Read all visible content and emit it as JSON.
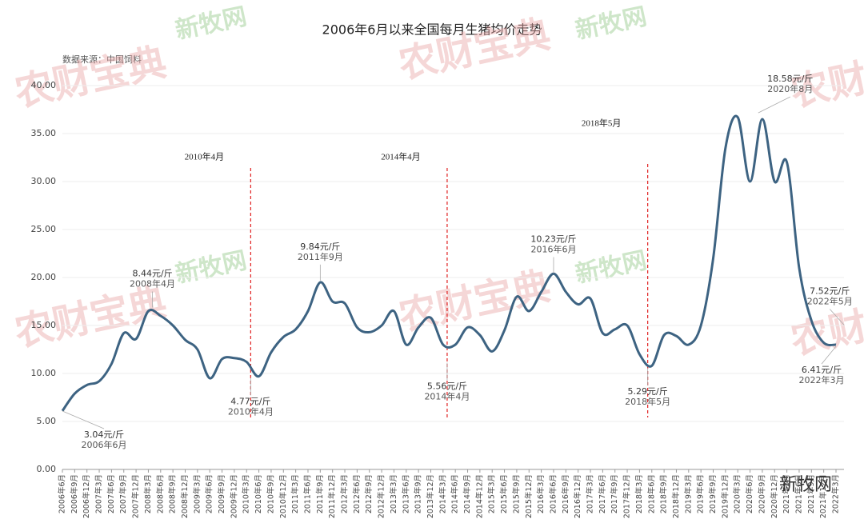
{
  "chart_data": {
    "type": "line",
    "title": "2006年6月以来全国每月生猪均价走势",
    "source": "数据来源：中国饲料",
    "watermarks": [
      "农财宝典",
      "新牧网"
    ],
    "categories": [
      "2006年6月",
      "2006年9月",
      "2006年12月",
      "2007年3月",
      "2007年6月",
      "2007年9月",
      "2007年12月",
      "2008年3月",
      "2008年6月",
      "2008年9月",
      "2008年12月",
      "2009年3月",
      "2009年6月",
      "2009年9月",
      "2009年12月",
      "2010年3月",
      "2010年6月",
      "2010年9月",
      "2010年12月",
      "2011年3月",
      "2011年6月",
      "2011年9月",
      "2011年12月",
      "2012年3月",
      "2012年6月",
      "2012年9月",
      "2012年12月",
      "2013年3月",
      "2013年6月",
      "2013年9月",
      "2013年12月",
      "2014年3月",
      "2014年6月",
      "2014年9月",
      "2014年12月",
      "2015年3月",
      "2015年6月",
      "2015年9月",
      "2015年12月",
      "2016年3月",
      "2016年6月",
      "2016年9月",
      "2016年12月",
      "2017年3月",
      "2017年6月",
      "2017年9月",
      "2017年12月",
      "2018年3月",
      "2018年6月",
      "2018年9月",
      "2018年12月",
      "2019年3月",
      "2019年6月",
      "2019年9月",
      "2019年12月",
      "2020年3月",
      "2020年6月",
      "2020年9月",
      "2020年12月",
      "2021年3月",
      "2021年6月",
      "2021年9月",
      "2021年12月",
      "2022年3月"
    ],
    "values": [
      6.1,
      7.9,
      8.8,
      9.2,
      11.0,
      14.2,
      13.6,
      16.5,
      16.0,
      15.0,
      13.5,
      12.5,
      9.5,
      11.5,
      11.6,
      11.2,
      9.7,
      12.2,
      13.8,
      14.6,
      16.5,
      19.5,
      17.5,
      17.3,
      14.8,
      14.3,
      15.0,
      16.5,
      13.0,
      14.8,
      15.8,
      13.0,
      13.0,
      14.8,
      14.0,
      12.3,
      14.5,
      18.0,
      16.5,
      18.5,
      20.4,
      18.5,
      17.2,
      17.8,
      14.2,
      14.6,
      15.0,
      12.0,
      10.8,
      14.0,
      13.9,
      13.0,
      15.0,
      22.0,
      33.5,
      36.7,
      30.0,
      36.5,
      30.0,
      32.0,
      21.0,
      15.5,
      13.2,
      13.0
    ],
    "color": "#3d6382",
    "ylim": [
      0,
      40
    ],
    "yticks": [
      {
        "value": 0,
        "label": "0.00"
      },
      {
        "value": 5,
        "label": "5.00"
      },
      {
        "value": 10,
        "label": "10.00"
      },
      {
        "value": 15,
        "label": "15.00"
      },
      {
        "value": 20,
        "label": "20.00"
      },
      {
        "value": 25,
        "label": "25.00"
      },
      {
        "value": 30,
        "label": "30.00"
      },
      {
        "value": 35,
        "label": "35.00"
      },
      {
        "value": 40,
        "label": "40.00"
      }
    ],
    "markers": [
      "2010年4月",
      "2014年4月",
      "2018年5月"
    ],
    "annotations": [
      {
        "label": "3.04元/斤",
        "date": "2006年6月",
        "value": 6.08
      },
      {
        "label": "8.44元/斤",
        "date": "2008年4月",
        "value": 16.88
      },
      {
        "label": "4.77元/斤",
        "date": "2010年4月",
        "value": 9.54
      },
      {
        "label": "9.84元/斤",
        "date": "2011年9月",
        "value": 19.68
      },
      {
        "label": "5.56元/斤",
        "date": "2014年4月",
        "value": 11.12
      },
      {
        "label": "10.23元/斤",
        "date": "2016年6月",
        "value": 20.46
      },
      {
        "label": "5.29元/斤",
        "date": "2018年5月",
        "value": 10.58
      },
      {
        "label": "18.58元/斤",
        "date": "2020年8月",
        "value": 37.16
      },
      {
        "label": "6.41元/斤",
        "date": "2022年3月",
        "value": 12.82
      },
      {
        "label": "7.52元/斤",
        "date": "2022年5月",
        "value": 15.04
      }
    ]
  }
}
